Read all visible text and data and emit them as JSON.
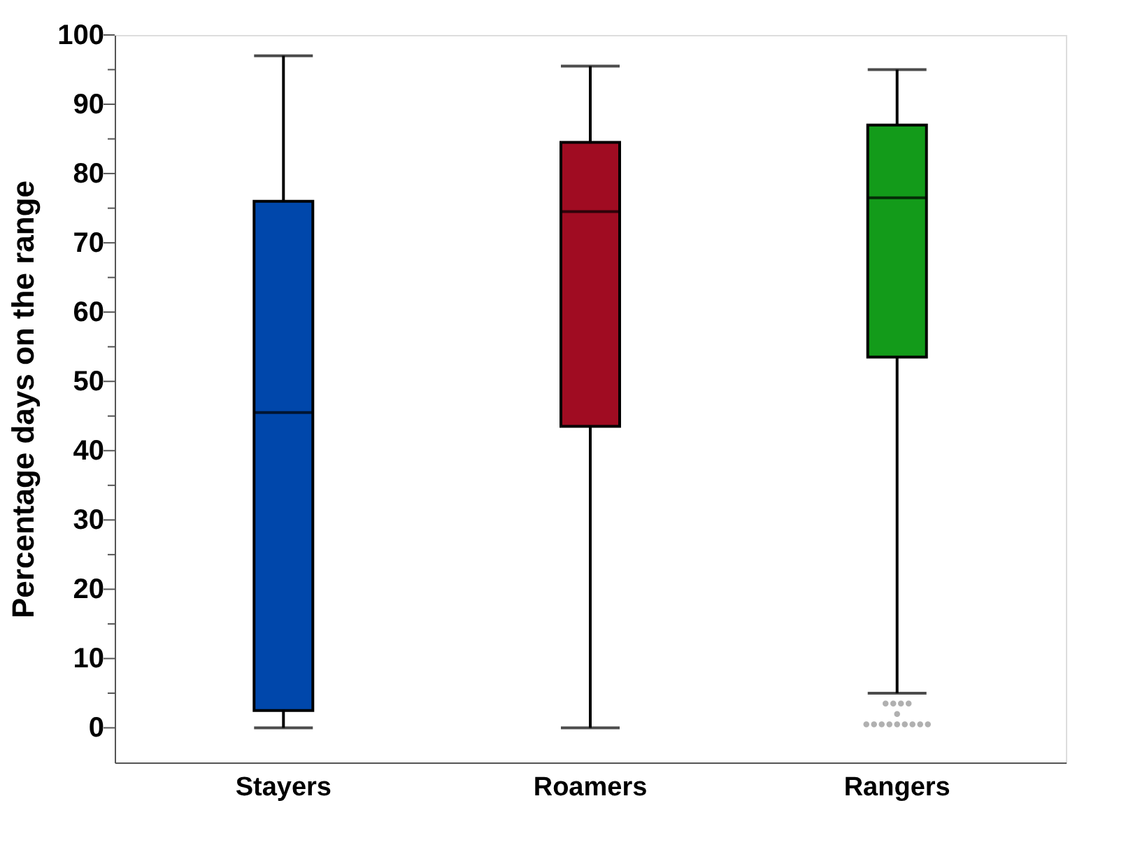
{
  "chart_data": {
    "type": "box",
    "ylabel": "Percentage days on the range",
    "categories": [
      "Stayers",
      "Roamers",
      "Rangers"
    ],
    "colors": [
      "#0047ab",
      "#a00c22",
      "#139b1a"
    ],
    "boxes": [
      {
        "low": 0,
        "q1": 2.5,
        "median": 45.5,
        "q3": 76,
        "high": 97
      },
      {
        "low": 0,
        "q1": 43.5,
        "median": 74.5,
        "q3": 84.5,
        "high": 95.5
      },
      {
        "low": 5,
        "q1": 53.5,
        "median": 76.5,
        "q3": 87,
        "high": 95,
        "outliers": [
          3.5,
          3.5,
          3.5,
          3.5,
          2,
          0.5,
          0.5,
          0.5,
          0.5,
          0.5,
          0.5,
          0.5,
          0.5,
          0.5
        ]
      }
    ],
    "ylim": [
      -5,
      100
    ],
    "yticks": [
      0,
      {
        "value": 5,
        "label": null
      },
      10,
      {
        "value": 15,
        "label": null
      },
      20,
      {
        "value": 25,
        "label": null
      },
      30,
      {
        "value": 35,
        "label": null
      },
      40,
      {
        "value": 45,
        "label": null
      },
      50,
      {
        "value": 55,
        "label": null
      },
      60,
      {
        "value": 65,
        "label": null
      },
      70,
      {
        "value": 75,
        "label": null
      },
      80,
      {
        "value": 85,
        "label": null
      },
      90,
      {
        "value": 95,
        "label": null
      },
      100
    ],
    "grid": false
  }
}
